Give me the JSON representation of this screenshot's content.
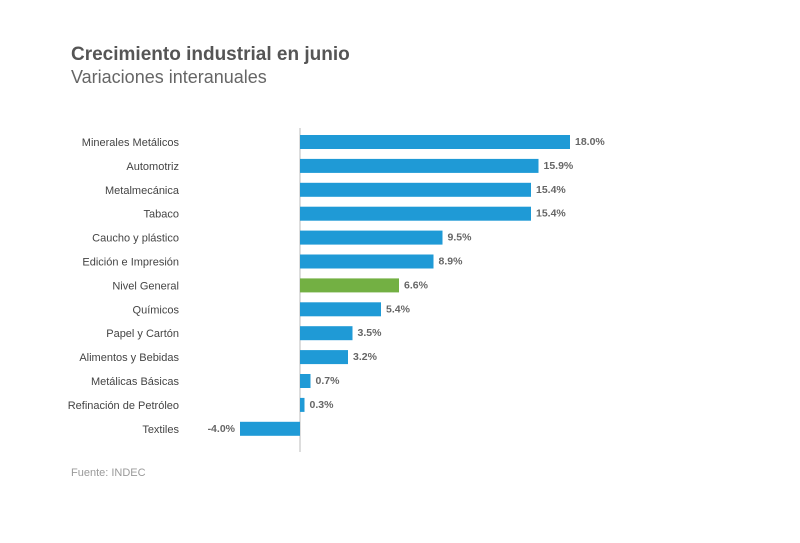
{
  "chart_data": {
    "type": "bar",
    "orientation": "horizontal",
    "title": "Crecimiento industrial en junio",
    "subtitle": "Variaciones interanuales",
    "source": "Fuente: INDEC",
    "unit": "%",
    "categories": [
      "Minerales Metálicos",
      "Automotriz",
      "Metalmecánica",
      "Tabaco",
      "Caucho y plástico",
      "Edición e Impresión",
      "Nivel General",
      "Químicos",
      "Papel y Cartón",
      "Alimentos y Bebidas",
      "Metálicas Básicas",
      "Refinación de Petróleo",
      "Textiles"
    ],
    "values": [
      18.0,
      15.9,
      15.4,
      15.4,
      9.5,
      8.9,
      6.6,
      5.4,
      3.5,
      3.2,
      0.7,
      0.3,
      -4.0
    ],
    "value_labels": [
      "18.0%",
      "15.9%",
      "15.4%",
      "15.4%",
      "9.5%",
      "8.9%",
      "6.6%",
      "5.4%",
      "3.5%",
      "3.2%",
      "0.7%",
      "0.3%",
      "-4.0%"
    ],
    "highlight_category": "Nivel General",
    "colors": {
      "bar": "#1f9ad6",
      "highlight": "#73b043",
      "axis": "#bbbbbb"
    },
    "grid": false,
    "legend": "none"
  }
}
